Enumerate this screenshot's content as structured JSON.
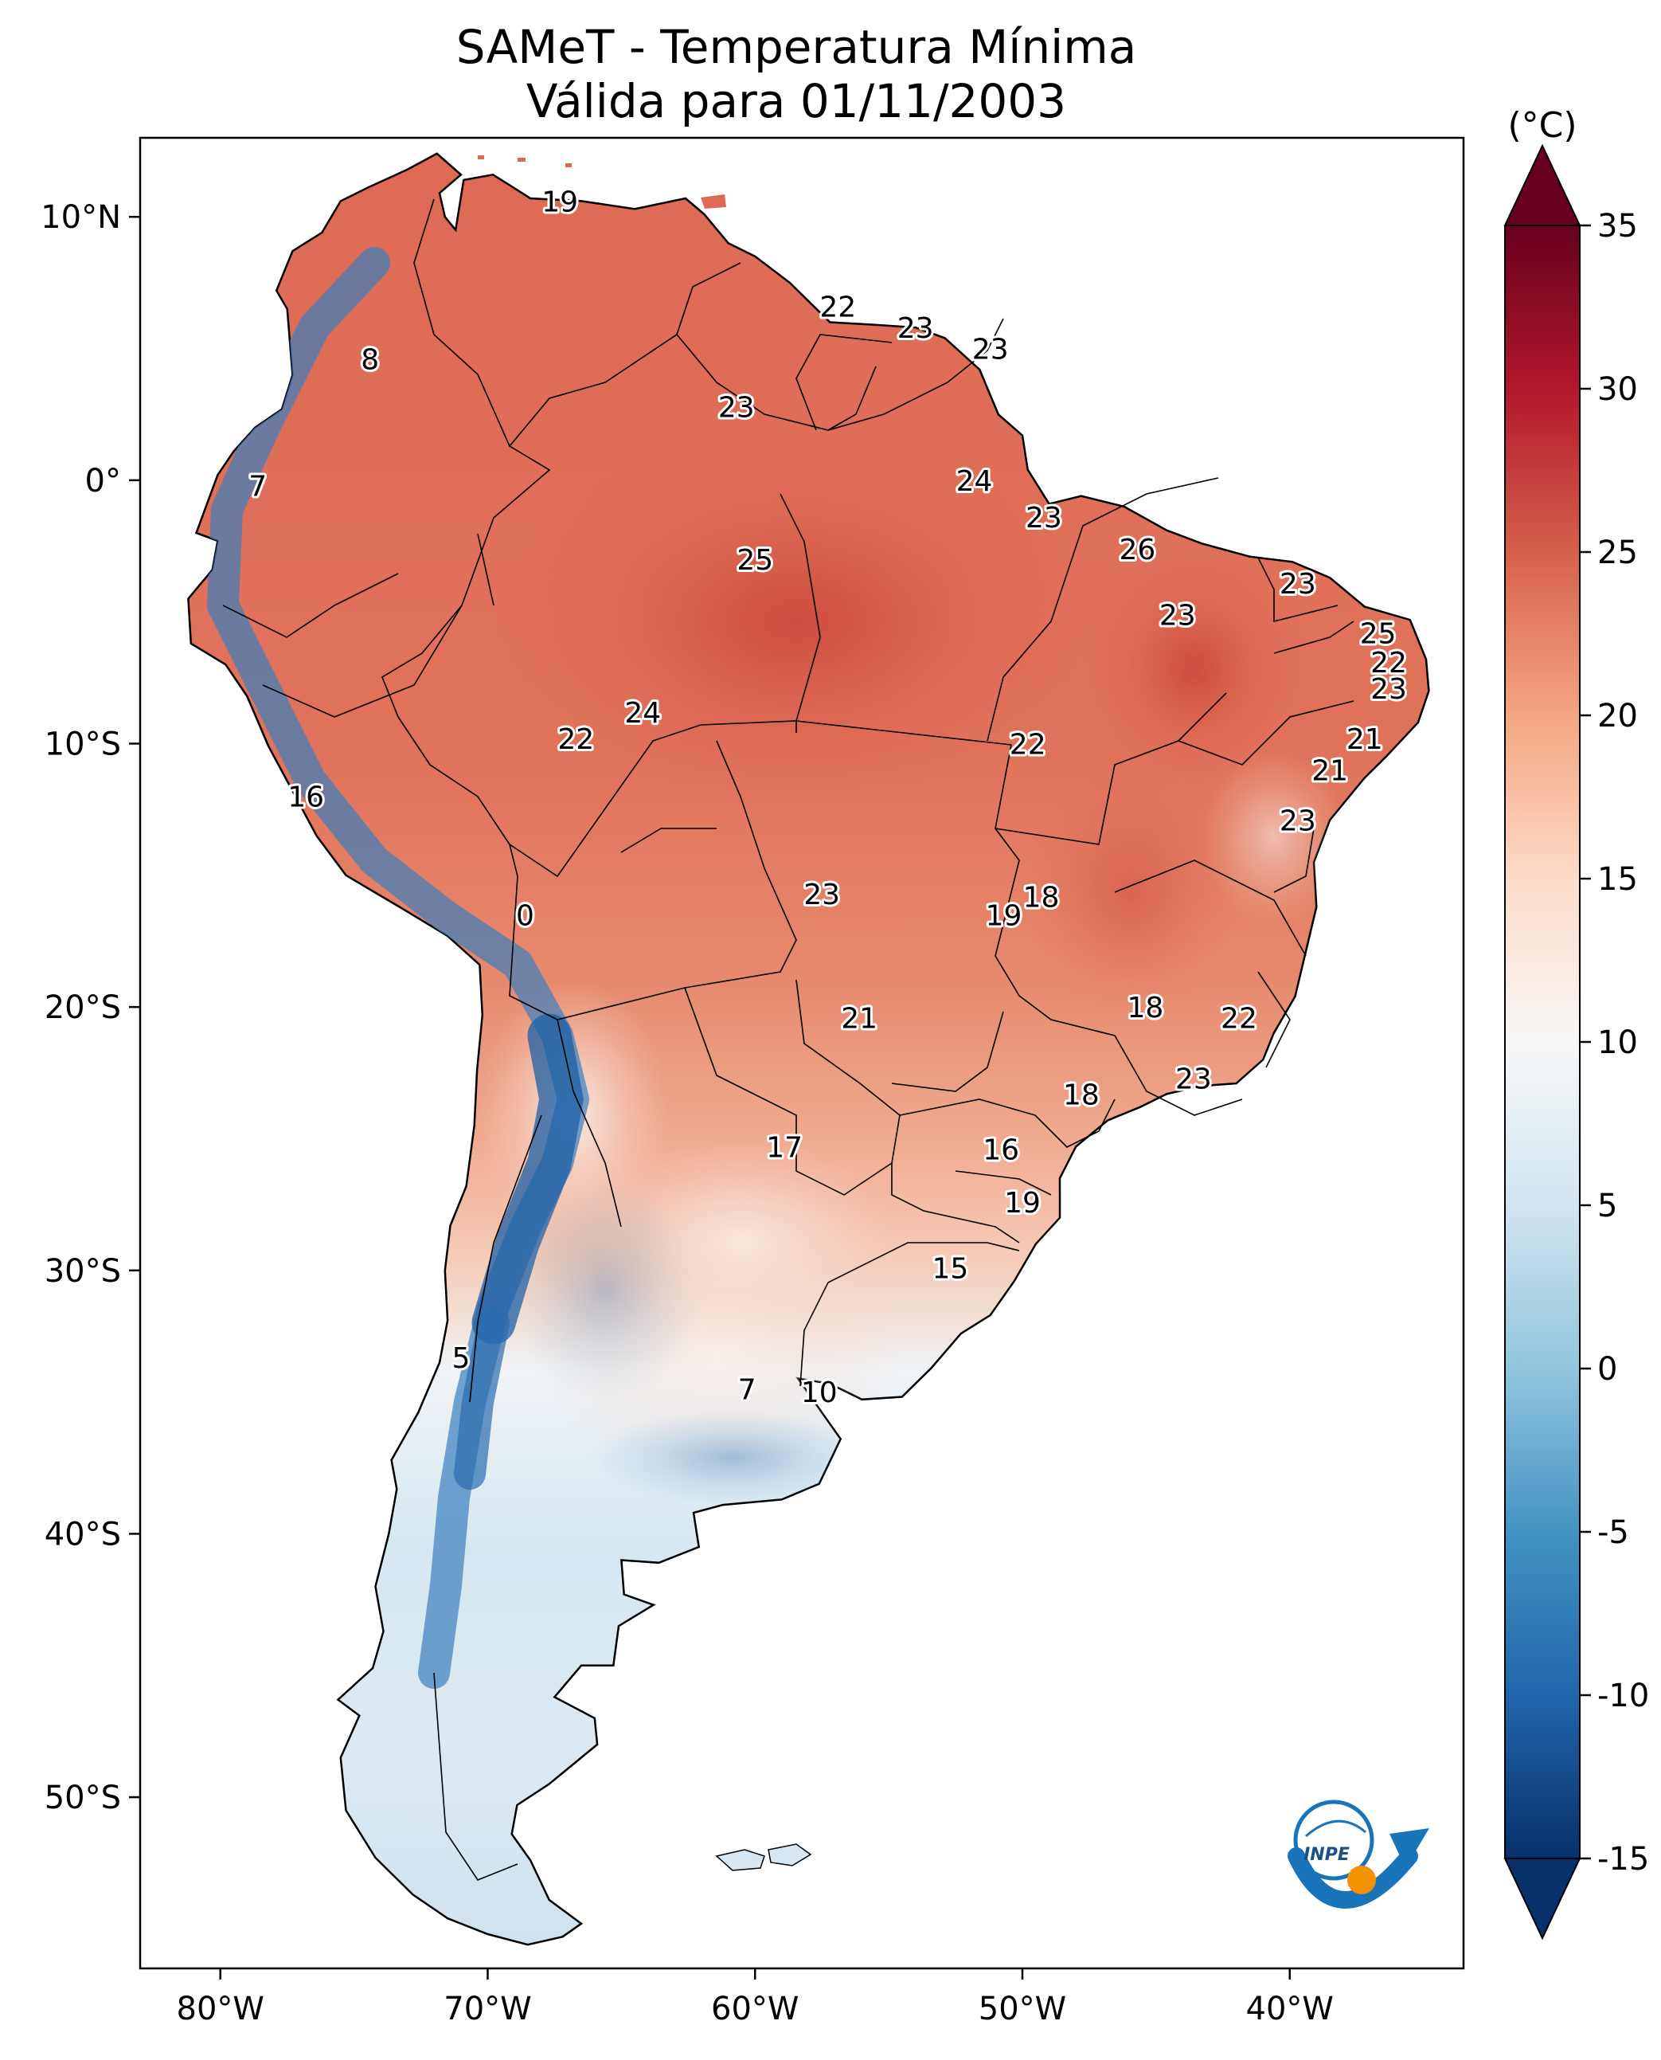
{
  "title": "SAMeT - Temperatura Mínima",
  "subtitle": "Válida para 01/11/2003",
  "colorbar": {
    "unit": "(°C)",
    "ticks": [
      35,
      30,
      25,
      20,
      15,
      10,
      5,
      0,
      -5,
      -10,
      -15
    ],
    "range": [
      -15,
      35
    ],
    "extend": "both",
    "palette": "RdBu_r",
    "colors": [
      "#08306b",
      "#2166ac",
      "#4393c3",
      "#92c5de",
      "#d1e5f0",
      "#f7f7f7",
      "#fddbc7",
      "#f4a582",
      "#d6604d",
      "#b2182b",
      "#67001f"
    ]
  },
  "axes": {
    "lon_ticks": [
      "80°W",
      "70°W",
      "60°W",
      "50°W",
      "40°W"
    ],
    "lat_ticks": [
      "10°N",
      "0°",
      "10°S",
      "20°S",
      "30°S",
      "40°S",
      "50°S"
    ],
    "extent": {
      "lon_min": -83,
      "lon_max": -33.5,
      "lat_min": -56.5,
      "lat_max": 13
    }
  },
  "map_labels": [
    {
      "text": "19",
      "lon": -67.3,
      "lat": 10.6
    },
    {
      "text": "8",
      "lon": -74.4,
      "lat": 4.6
    },
    {
      "text": "22",
      "lon": -56.9,
      "lat": 6.6
    },
    {
      "text": "23",
      "lon": -54.0,
      "lat": 5.8
    },
    {
      "text": "23",
      "lon": -51.2,
      "lat": 5.0
    },
    {
      "text": "23",
      "lon": -60.7,
      "lat": 2.8
    },
    {
      "text": "7",
      "lon": -78.6,
      "lat": -0.2
    },
    {
      "text": "24",
      "lon": -51.8,
      "lat": 0.0
    },
    {
      "text": "23",
      "lon": -49.2,
      "lat": -1.4
    },
    {
      "text": "26",
      "lon": -45.7,
      "lat": -2.6
    },
    {
      "text": "25",
      "lon": -60.0,
      "lat": -3.0
    },
    {
      "text": "23",
      "lon": -39.7,
      "lat": -3.9
    },
    {
      "text": "23",
      "lon": -44.2,
      "lat": -5.1
    },
    {
      "text": "25",
      "lon": -36.7,
      "lat": -5.8
    },
    {
      "text": "22",
      "lon": -36.3,
      "lat": -6.9
    },
    {
      "text": "23",
      "lon": -36.3,
      "lat": -7.9
    },
    {
      "text": "24",
      "lon": -64.2,
      "lat": -8.8
    },
    {
      "text": "21",
      "lon": -37.2,
      "lat": -9.8
    },
    {
      "text": "22",
      "lon": -66.7,
      "lat": -9.8
    },
    {
      "text": "22",
      "lon": -49.8,
      "lat": -10.0
    },
    {
      "text": "21",
      "lon": -38.5,
      "lat": -11.0
    },
    {
      "text": "16",
      "lon": -76.8,
      "lat": -12.0
    },
    {
      "text": "23",
      "lon": -39.7,
      "lat": -12.9
    },
    {
      "text": "18",
      "lon": -49.3,
      "lat": -15.8
    },
    {
      "text": "23",
      "lon": -57.5,
      "lat": -15.7
    },
    {
      "text": "19",
      "lon": -50.7,
      "lat": -16.5
    },
    {
      "text": "0",
      "lon": -68.6,
      "lat": -16.5
    },
    {
      "text": "18",
      "lon": -45.4,
      "lat": -20.0
    },
    {
      "text": "21",
      "lon": -56.1,
      "lat": -20.4
    },
    {
      "text": "22",
      "lon": -41.9,
      "lat": -20.4
    },
    {
      "text": "23",
      "lon": -43.6,
      "lat": -22.7
    },
    {
      "text": "18",
      "lon": -47.8,
      "lat": -23.3
    },
    {
      "text": "17",
      "lon": -58.9,
      "lat": -25.3
    },
    {
      "text": "16",
      "lon": -50.8,
      "lat": -25.4
    },
    {
      "text": "19",
      "lon": -50.0,
      "lat": -27.4
    },
    {
      "text": "15",
      "lon": -52.7,
      "lat": -29.9
    },
    {
      "text": "5",
      "lon": -71.0,
      "lat": -33.3
    },
    {
      "text": "7",
      "lon": -60.3,
      "lat": -34.5
    },
    {
      "text": "10",
      "lon": -57.6,
      "lat": -34.6
    }
  ],
  "logo": {
    "text": "INPE"
  }
}
